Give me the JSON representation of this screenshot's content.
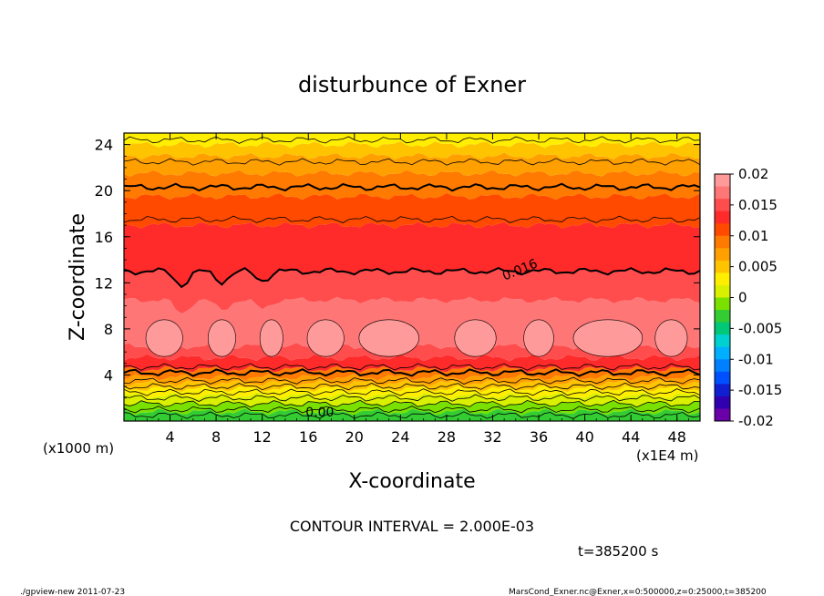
{
  "chart_data": {
    "type": "heatmap",
    "title": "disturbunce of Exner",
    "xlabel": "X-coordinate",
    "ylabel": "Z-coordinate",
    "x_unit": "(x1E4 m)",
    "y_unit": "(x1000 m)",
    "xlim": [
      0,
      50
    ],
    "ylim": [
      0,
      25
    ],
    "x_ticks": [
      "4",
      "8",
      "12",
      "16",
      "20",
      "24",
      "28",
      "32",
      "36",
      "40",
      "44",
      "48"
    ],
    "y_ticks": [
      "4",
      "8",
      "12",
      "16",
      "20",
      "24"
    ],
    "contour_interval_text": "CONTOUR INTERVAL = 2.000E-03",
    "contour_labels": [
      {
        "text": "0.016",
        "x": 34.5,
        "z": 12.8
      },
      {
        "text": "0.00",
        "x": 17,
        "z": 0.4
      }
    ],
    "colorbar": {
      "labels": [
        "0.02",
        "0.015",
        "0.01",
        "0.005",
        "0",
        "-0.005",
        "-0.01",
        "-0.015",
        "-0.02"
      ],
      "colors": [
        "#ff9a9a",
        "#ff7676",
        "#ff4d4d",
        "#ff2a2a",
        "#ff4a00",
        "#ff7a00",
        "#ffa000",
        "#ffc400",
        "#ffee00",
        "#d9f000",
        "#7ae000",
        "#33cc33",
        "#00c878",
        "#00d0d0",
        "#00b0ff",
        "#0080ff",
        "#0050ff",
        "#1020d0",
        "#3000b0",
        "#6a00a8"
      ]
    },
    "bands": [
      {
        "z": 0,
        "color": "#33cc33"
      },
      {
        "z": 0.8,
        "color": "#7ae000"
      },
      {
        "z": 1.5,
        "color": "#d9f000"
      },
      {
        "z": 2.2,
        "color": "#ffee00"
      },
      {
        "z": 2.8,
        "color": "#ffc400"
      },
      {
        "z": 3.3,
        "color": "#ffa000"
      },
      {
        "z": 3.8,
        "color": "#ff7a00"
      },
      {
        "z": 4.5,
        "color": "#ff2a2a"
      },
      {
        "z": 5.5,
        "color": "#ff4d4d"
      },
      {
        "z": 6.5,
        "color": "#ff7676"
      },
      {
        "z": 10.5,
        "color": "#ff4d4d"
      },
      {
        "z": 13,
        "color": "#ff2a2a"
      },
      {
        "z": 17,
        "color": "#ff4a00"
      },
      {
        "z": 19.5,
        "color": "#ff7a00"
      },
      {
        "z": 21.5,
        "color": "#ffa000"
      },
      {
        "z": 23,
        "color": "#ffc400"
      },
      {
        "z": 24,
        "color": "#ffee00"
      }
    ],
    "contours": [
      {
        "z": 0.5,
        "bold": false
      },
      {
        "z": 1.0,
        "bold": false
      },
      {
        "z": 1.5,
        "bold": false
      },
      {
        "z": 2.0,
        "bold": false
      },
      {
        "z": 2.5,
        "bold": false
      },
      {
        "z": 3.0,
        "bold": false
      },
      {
        "z": 3.5,
        "bold": false
      },
      {
        "z": 4.2,
        "bold": true
      },
      {
        "z": 4.7,
        "bold": false
      },
      {
        "z": 13.0,
        "bold": true
      },
      {
        "z": 17.5,
        "bold": false
      },
      {
        "z": 20.3,
        "bold": true
      },
      {
        "z": 22.5,
        "bold": false
      },
      {
        "z": 24.4,
        "bold": false
      }
    ]
  },
  "time_label": "t=385200 s",
  "footer_left": "./gpview-new  2011-07-23",
  "footer_right": "MarsCond_Exner.nc@Exner,x=0:500000,z=0:25000,t=385200"
}
